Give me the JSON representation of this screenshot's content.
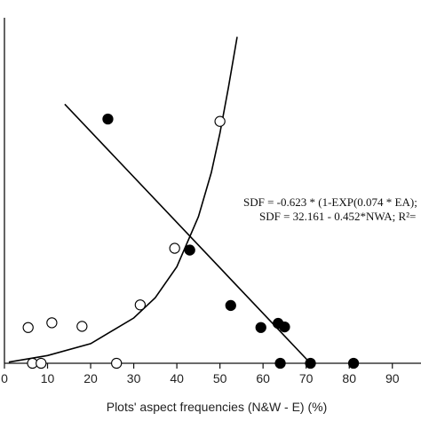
{
  "chart_data": {
    "type": "scatter",
    "xlabel": "Plots' aspect frequencies (N&W - E) (%)",
    "ylabel": "",
    "xlim": [
      0,
      95
    ],
    "ylim": [
      0,
      58
    ],
    "x_ticks": [
      "0",
      "10",
      "20",
      "30",
      "40",
      "50",
      "60",
      "70",
      "80",
      "90"
    ],
    "series": [
      {
        "marker": "filled-circle",
        "points": [
          {
            "x": 24,
            "y": 41
          },
          {
            "x": 43,
            "y": 19
          },
          {
            "x": 52.5,
            "y": 9.7
          },
          {
            "x": 59.5,
            "y": 6
          },
          {
            "x": 63.5,
            "y": 6.7
          },
          {
            "x": 65,
            "y": 6.1
          },
          {
            "x": 64,
            "y": 0
          },
          {
            "x": 71,
            "y": 0
          },
          {
            "x": 81,
            "y": 0
          }
        ]
      },
      {
        "marker": "open-circle",
        "points": [
          {
            "x": 5.5,
            "y": 6
          },
          {
            "x": 11,
            "y": 6.8
          },
          {
            "x": 18,
            "y": 6.2
          },
          {
            "x": 31.5,
            "y": 9.8
          },
          {
            "x": 39.5,
            "y": 19.3
          },
          {
            "x": 50,
            "y": 40.6
          },
          {
            "x": 6.5,
            "y": 0
          },
          {
            "x": 8.5,
            "y": 0
          },
          {
            "x": 26,
            "y": 0
          }
        ]
      }
    ],
    "lines": [
      {
        "kind": "linear",
        "x": [
          14,
          71
        ],
        "y": [
          43.5,
          0
        ]
      },
      {
        "kind": "exponential",
        "x": [
          1,
          10,
          20,
          30,
          35,
          40,
          45,
          48,
          50,
          52,
          54
        ],
        "y": [
          0.2,
          1.3,
          3.3,
          7.6,
          11.0,
          16.2,
          24.6,
          32.0,
          38.6,
          46.4,
          54.8
        ]
      }
    ],
    "annotations": [
      "SDF = -0.623 * (1-EXP(0.074 * EA);",
      "SDF = 32.161 - 0.452*NWA; R²="
    ]
  },
  "colors": {
    "axis": "#111111",
    "marker": "#000000",
    "line": "#000000"
  }
}
